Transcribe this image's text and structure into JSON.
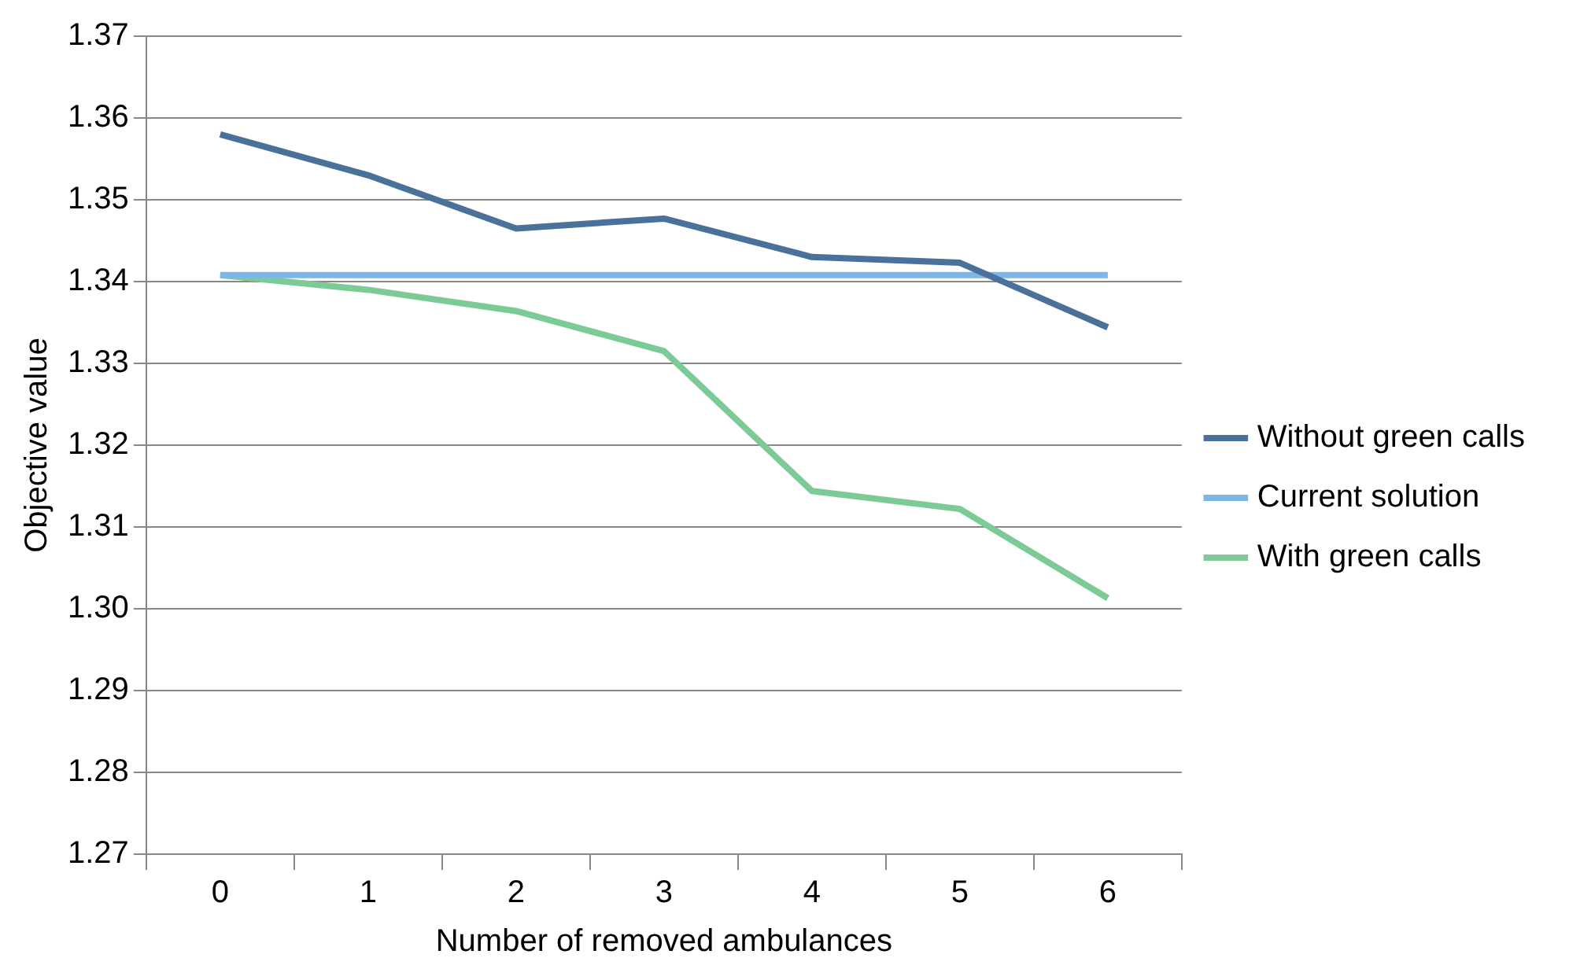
{
  "chart_data": {
    "type": "line",
    "xlabel": "Number of removed ambulances",
    "ylabel": "Objective value",
    "categories": [
      "0",
      "1",
      "2",
      "3",
      "4",
      "5",
      "6"
    ],
    "series": [
      {
        "name": "Without green calls",
        "color": "#4a7199",
        "values": [
          1.358,
          1.353,
          1.3465,
          1.3477,
          1.343,
          1.3423,
          1.3344
        ]
      },
      {
        "name": "Current solution",
        "color": "#7fb6e8",
        "values": [
          1.3408,
          1.3408,
          1.3408,
          1.3408,
          1.3408,
          1.3408,
          1.3408
        ]
      },
      {
        "name": "With green calls",
        "color": "#7ccb97",
        "values": [
          1.3408,
          1.339,
          1.3364,
          1.3315,
          1.3144,
          1.3122,
          1.3013
        ]
      }
    ],
    "ylim": [
      1.27,
      1.37
    ],
    "yticks": [
      1.27,
      1.28,
      1.29,
      {
        "value": 1.3,
        "label": "1.30"
      },
      1.31,
      1.32,
      1.33,
      1.34,
      1.35,
      1.36,
      1.37
    ],
    "grid": "y",
    "legend": "right",
    "marker": "none",
    "line_style": "solid"
  }
}
